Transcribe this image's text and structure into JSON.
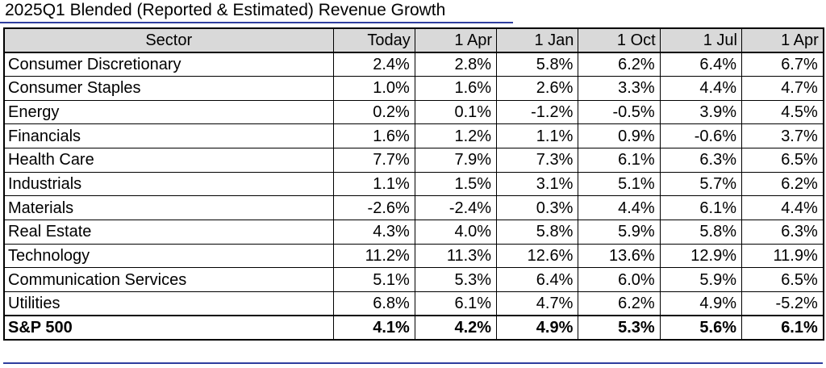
{
  "title": "2025Q1 Blended (Reported & Estimated) Revenue Growth",
  "chart_data": {
    "type": "table",
    "title": "2025Q1 Blended (Reported & Estimated) Revenue Growth",
    "columns": [
      "Sector",
      "Today",
      "1 Apr",
      "1 Jan",
      "1 Oct",
      "1 Jul",
      "1 Apr"
    ],
    "rows": [
      {
        "sector": "Consumer Discretionary",
        "values": [
          "2.4%",
          "2.8%",
          "5.8%",
          "6.2%",
          "6.4%",
          "6.7%"
        ]
      },
      {
        "sector": "Consumer Staples",
        "values": [
          "1.0%",
          "1.6%",
          "2.6%",
          "3.3%",
          "4.4%",
          "4.7%"
        ]
      },
      {
        "sector": "Energy",
        "values": [
          "0.2%",
          "0.1%",
          "-1.2%",
          "-0.5%",
          "3.9%",
          "4.5%"
        ]
      },
      {
        "sector": "Financials",
        "values": [
          "1.6%",
          "1.2%",
          "1.1%",
          "0.9%",
          "-0.6%",
          "3.7%"
        ]
      },
      {
        "sector": "Health Care",
        "values": [
          "7.7%",
          "7.9%",
          "7.3%",
          "6.1%",
          "6.3%",
          "6.5%"
        ]
      },
      {
        "sector": "Industrials",
        "values": [
          "1.1%",
          "1.5%",
          "3.1%",
          "5.1%",
          "5.7%",
          "6.2%"
        ]
      },
      {
        "sector": "Materials",
        "values": [
          "-2.6%",
          "-2.4%",
          "0.3%",
          "4.4%",
          "6.1%",
          "4.4%"
        ]
      },
      {
        "sector": "Real Estate",
        "values": [
          "4.3%",
          "4.0%",
          "5.8%",
          "5.9%",
          "5.8%",
          "6.3%"
        ]
      },
      {
        "sector": "Technology",
        "values": [
          "11.2%",
          "11.3%",
          "12.6%",
          "13.6%",
          "12.9%",
          "11.9%"
        ]
      },
      {
        "sector": "Communication Services",
        "values": [
          "5.1%",
          "5.3%",
          "6.4%",
          "6.0%",
          "5.9%",
          "6.5%"
        ]
      },
      {
        "sector": "Utilities",
        "values": [
          "6.8%",
          "6.1%",
          "4.7%",
          "6.2%",
          "4.9%",
          "-5.2%"
        ]
      }
    ],
    "total": {
      "sector": "S&P 500",
      "values": [
        "4.1%",
        "4.2%",
        "4.9%",
        "5.3%",
        "5.6%",
        "6.1%"
      ]
    },
    "colors": {
      "header_fill": "#d9d9d9",
      "rule": "#2e3e9e",
      "grid": "#000000"
    }
  }
}
